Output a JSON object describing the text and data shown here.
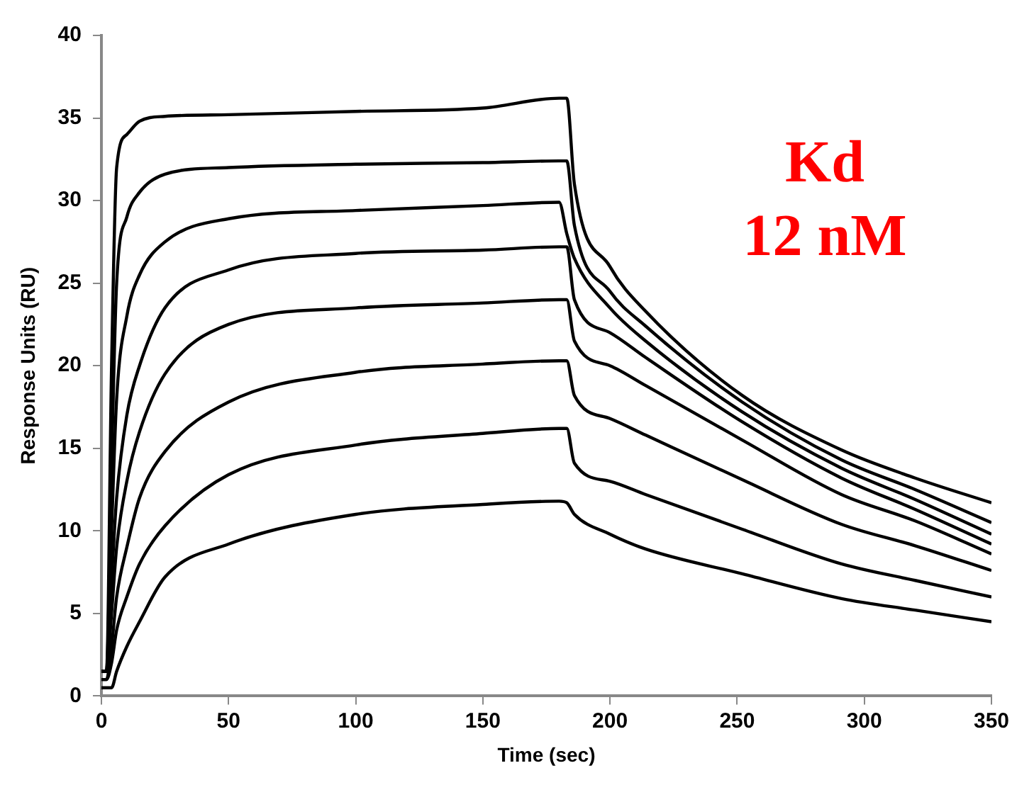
{
  "chart_data": {
    "type": "line",
    "xlabel": "Time (sec)",
    "ylabel": "Response Units (RU)",
    "annotations": [
      "Kd",
      "12 nM"
    ],
    "x": [
      0,
      2,
      4,
      6,
      10,
      15,
      25,
      50,
      100,
      150,
      180,
      183,
      186,
      200,
      214,
      252,
      291,
      320,
      350
    ],
    "series": [
      {
        "color": "#000000",
        "values": [
          1.5,
          1.5,
          20,
          32,
          34,
          34.8,
          35.1,
          35.2,
          35.4,
          35.6,
          36.2,
          36.2,
          31,
          26,
          23.3,
          18.2,
          14.9,
          13.2,
          11.7
        ]
      },
      {
        "color": "#000000",
        "values": [
          1.5,
          1.5,
          14,
          25,
          29,
          30.5,
          31.6,
          32,
          32.2,
          32.3,
          32.4,
          32.4,
          28.5,
          24.5,
          22.4,
          17.8,
          14.3,
          12.5,
          10.5
        ]
      },
      {
        "color": "#000000",
        "values": [
          1.5,
          1.5,
          10,
          18,
          23,
          25.5,
          27.5,
          28.9,
          29.4,
          29.7,
          29.9,
          28,
          26.5,
          23.5,
          21.5,
          17.2,
          13.8,
          11.9,
          9.8
        ]
      },
      {
        "color": "#000000",
        "values": [
          1.5,
          1.5,
          7,
          12,
          17,
          20,
          23.5,
          25.8,
          26.8,
          27,
          27.2,
          27.2,
          24,
          22,
          20.5,
          16.6,
          13.2,
          11.3,
          9.2
        ]
      },
      {
        "color": "#000000",
        "values": [
          1.5,
          1.5,
          5,
          9,
          13,
          16,
          19.5,
          22.5,
          23.5,
          23.8,
          24,
          24,
          21.5,
          20,
          18.8,
          15.5,
          12.2,
          10.6,
          8.6
        ]
      },
      {
        "color": "#000000",
        "values": [
          1,
          1,
          3,
          6,
          9,
          12,
          14.8,
          17.8,
          19.6,
          20.1,
          20.3,
          20.3,
          18.2,
          16.8,
          15.8,
          13.1,
          10.4,
          9.1,
          7.6
        ]
      },
      {
        "color": "#000000",
        "values": [
          1,
          1,
          2,
          4,
          6,
          8,
          10.3,
          13.4,
          15.2,
          15.9,
          16.2,
          16.2,
          14.1,
          13,
          12.2,
          10.1,
          8,
          7,
          6
        ]
      },
      {
        "color": "#000000",
        "values": [
          0.5,
          0.5,
          0.5,
          1.5,
          3,
          4.5,
          7.2,
          9.2,
          11,
          11.6,
          11.8,
          11.7,
          11,
          9.8,
          8.9,
          7.4,
          5.9,
          5.2,
          4.5
        ]
      }
    ],
    "xlim": [
      0,
      350
    ],
    "xticks": [
      0,
      50,
      100,
      150,
      200,
      250,
      300,
      350
    ],
    "ylim": [
      0,
      40
    ],
    "yticks": [
      0,
      5,
      10,
      15,
      20,
      25,
      30,
      35,
      40
    ],
    "grid": false,
    "legend": false,
    "marker": "none",
    "line_style": "solid"
  }
}
